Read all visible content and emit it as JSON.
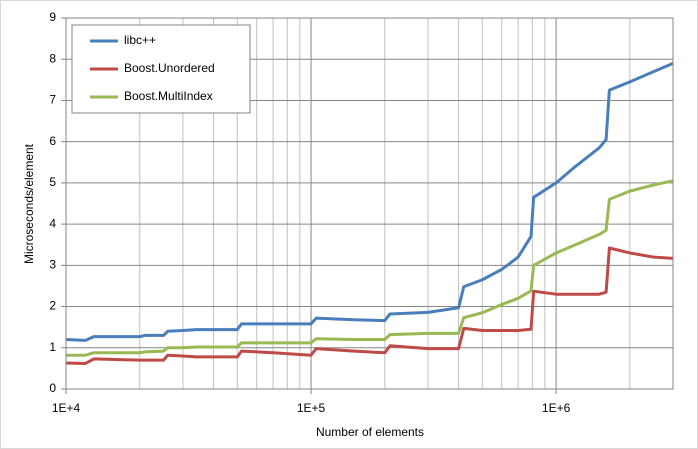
{
  "chart_data": {
    "type": "line",
    "x_label": "Number of elements",
    "y_label": "Microseconds/element",
    "x": [
      10000,
      12000,
      13000,
      20000,
      21000,
      25000,
      26000,
      30000,
      34000,
      50000,
      52000,
      70000,
      100000,
      105000,
      150000,
      200000,
      210000,
      300000,
      400000,
      420000,
      500000,
      600000,
      700000,
      790000,
      810000,
      1000000,
      1200000,
      1500000,
      1600000,
      1650000,
      2000000,
      2500000,
      3000000
    ],
    "series": [
      {
        "name": "libc++",
        "color": "#4a7ebb",
        "values": [
          1.2,
          1.18,
          1.27,
          1.27,
          1.3,
          1.3,
          1.4,
          1.42,
          1.44,
          1.44,
          1.58,
          1.58,
          1.58,
          1.72,
          1.68,
          1.66,
          1.82,
          1.86,
          1.97,
          2.48,
          2.65,
          2.9,
          3.2,
          3.7,
          4.65,
          5.0,
          5.4,
          5.85,
          6.05,
          7.25,
          7.45,
          7.7,
          7.9
        ]
      },
      {
        "name": "Boost.Unordered",
        "color": "#be4b48",
        "values": [
          0.63,
          0.62,
          0.73,
          0.7,
          0.7,
          0.7,
          0.82,
          0.8,
          0.78,
          0.78,
          0.92,
          0.88,
          0.82,
          0.98,
          0.92,
          0.88,
          1.05,
          0.98,
          0.98,
          1.47,
          1.42,
          1.42,
          1.42,
          1.45,
          2.37,
          2.3,
          2.3,
          2.3,
          2.35,
          3.42,
          3.3,
          3.2,
          3.17
        ]
      },
      {
        "name": "Boost.MultiIndex",
        "color": "#98b954",
        "values": [
          0.82,
          0.82,
          0.88,
          0.88,
          0.9,
          0.92,
          1.0,
          1.0,
          1.02,
          1.02,
          1.12,
          1.12,
          1.12,
          1.22,
          1.2,
          1.2,
          1.32,
          1.35,
          1.35,
          1.73,
          1.85,
          2.05,
          2.2,
          2.38,
          3.0,
          3.3,
          3.5,
          3.75,
          3.85,
          4.6,
          4.8,
          4.95,
          5.05
        ]
      }
    ],
    "x_log": true,
    "xlim": [
      10000,
      3000000
    ],
    "xticks": [
      {
        "value": 10000,
        "label": "1E+4"
      },
      {
        "value": 100000,
        "label": "1E+5"
      },
      {
        "value": 1000000,
        "label": "1E+6"
      }
    ],
    "x_minor_ticks": [
      20000,
      30000,
      40000,
      50000,
      60000,
      70000,
      80000,
      90000,
      200000,
      300000,
      400000,
      500000,
      600000,
      700000,
      800000,
      900000,
      2000000
    ],
    "ylim": [
      0,
      9
    ],
    "yticks": [
      0,
      1,
      2,
      3,
      4,
      5,
      6,
      7,
      8,
      9
    ],
    "grid": true,
    "legend_position": "upper left"
  }
}
